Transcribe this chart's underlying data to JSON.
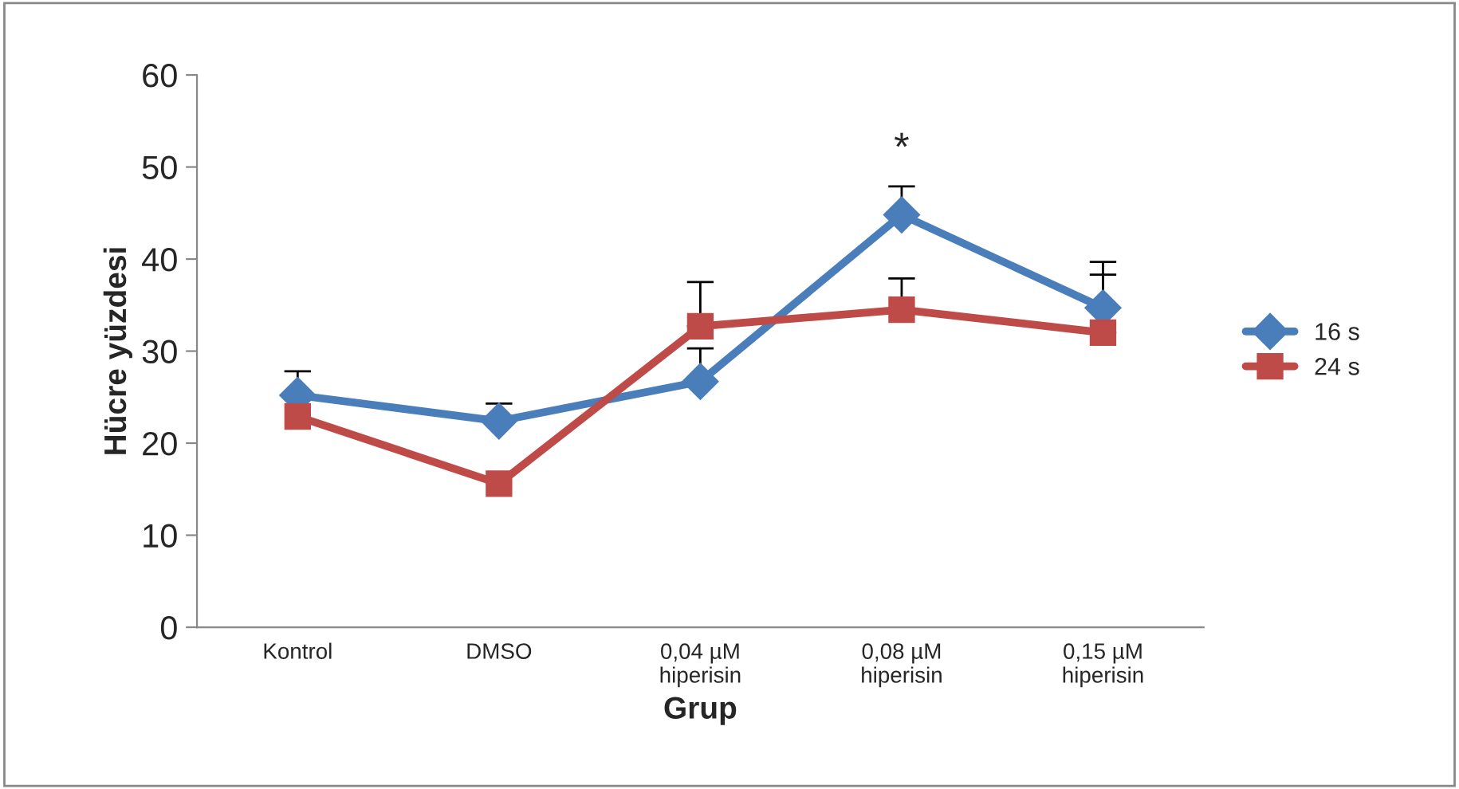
{
  "chart_data": {
    "type": "line",
    "xlabel": "Grup",
    "ylabel": "Hücre yüzdesi",
    "categories": [
      "Kontrol",
      "DMSO",
      "0,04 µM\nhiperisin",
      "0,08 µM\nhiperisin",
      "0,15 µM\nhiperisin"
    ],
    "series": [
      {
        "name": "16 s",
        "color": "#4a7ebb",
        "marker": "diamond",
        "values": [
          25.2,
          22.4,
          26.7,
          44.8,
          34.7
        ],
        "errors": [
          [
            25.2,
            27.8
          ],
          [
            22.4,
            24.3
          ],
          [
            26.7,
            30.3
          ],
          [
            44.8,
            47.9
          ],
          [
            34.7,
            39.7
          ]
        ]
      },
      {
        "name": "24 s",
        "color": "#be4b48",
        "marker": "square",
        "values": [
          22.9,
          15.6,
          32.7,
          34.5,
          32.0
        ],
        "errors": [
          null,
          null,
          [
            32.7,
            37.5
          ],
          [
            34.5,
            37.9
          ],
          [
            32.0,
            38.3
          ]
        ]
      }
    ],
    "annotations": [
      "*"
    ],
    "ylim": [
      0,
      60
    ],
    "yticks": [
      0,
      10,
      20,
      30,
      40,
      50,
      60
    ],
    "grid": false,
    "legend": "right"
  }
}
